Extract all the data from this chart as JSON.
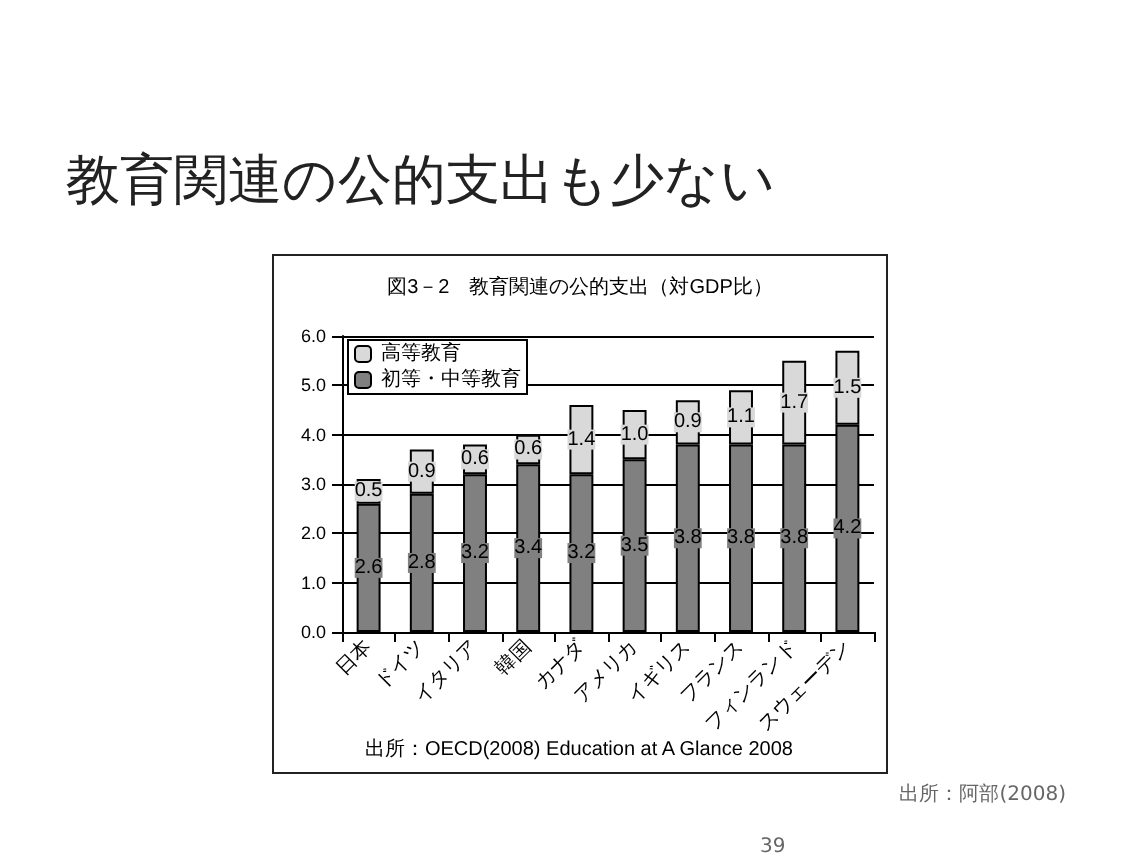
{
  "chart_data": {
    "type": "bar",
    "stacked": true,
    "title": "教育関連の公的支出も少ない",
    "subtitle": "図3－2　教育関連の公的支出（対GDP比）",
    "categories": [
      "日本",
      "ドイツ",
      "イタリア",
      "韓国",
      "カナダ",
      "アメリカ",
      "イギリス",
      "フランス",
      "フィンランド",
      "スウェーデン"
    ],
    "series": [
      {
        "name": "初等・中等教育",
        "color": "#808080",
        "values": [
          2.6,
          2.8,
          3.2,
          3.4,
          3.2,
          3.5,
          3.8,
          3.8,
          3.8,
          4.2
        ],
        "value_labels": [
          "2.6",
          "2.8",
          "3.2",
          "3.4",
          "3.2",
          "3.5",
          "3.8",
          "3.8",
          "3.8",
          "4.2"
        ]
      },
      {
        "name": "高等教育",
        "color": "#d9d9d9",
        "values": [
          0.5,
          0.9,
          0.6,
          0.6,
          1.4,
          1.0,
          0.9,
          1.1,
          1.7,
          1.5
        ],
        "value_labels": [
          "0.5",
          "0.9",
          "0.6",
          "0.6",
          "1.4",
          "1.0",
          "0.9",
          "1.1",
          "1.7",
          "1.5"
        ]
      }
    ],
    "ylim": [
      0,
      6
    ],
    "yticks": [
      {
        "value": 0,
        "label": "0.0"
      },
      {
        "value": 1,
        "label": "1.0"
      },
      {
        "value": 2,
        "label": "2.0"
      },
      {
        "value": 3,
        "label": "3.0"
      },
      {
        "value": 4,
        "label": "4.0"
      },
      {
        "value": 5,
        "label": "5.0"
      },
      {
        "value": 6,
        "label": "6.0"
      }
    ],
    "grid": "y",
    "legend": "top left",
    "annotations": [
      "出所：OECD(2008) Education at A Glance 2008",
      "出所：阿部(2008)",
      "39"
    ]
  }
}
